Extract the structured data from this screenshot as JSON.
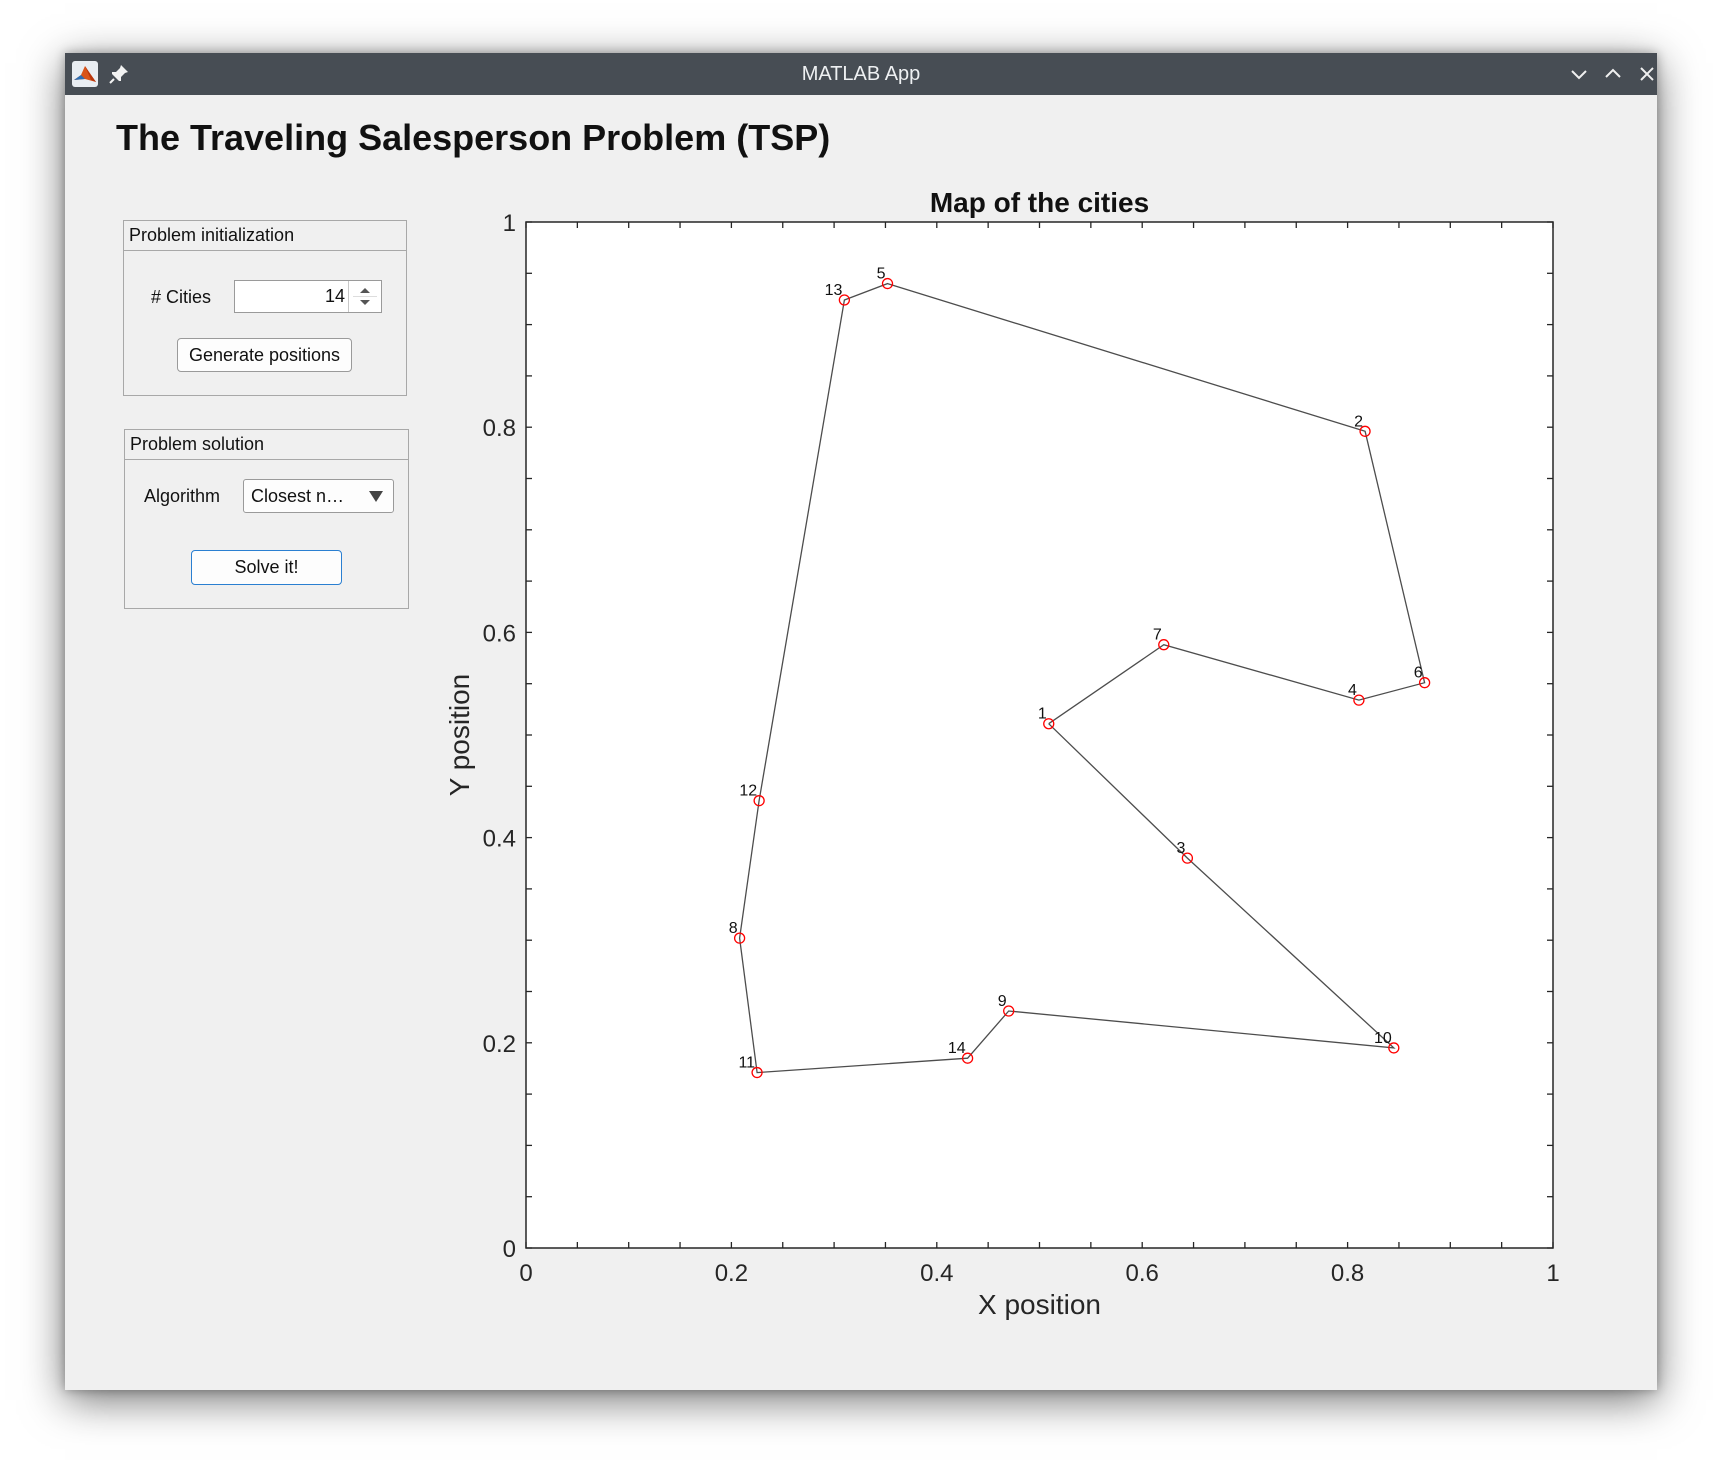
{
  "window": {
    "title": "MATLAB App"
  },
  "app": {
    "title": "The Traveling Salesperson Problem (TSP)"
  },
  "init_panel": {
    "title": "Problem initialization",
    "cities_label": "# Cities",
    "cities_value": "14",
    "generate_label": "Generate positions"
  },
  "solution_panel": {
    "title": "Problem solution",
    "algorithm_label": "Algorithm",
    "algorithm_value": "Closest n…",
    "solve_label": "Solve it!"
  },
  "colors": {
    "titlebar": "#474d54",
    "marker": "#ff0000",
    "route_line": "#4d4d4d",
    "focus": "#2a7fd1"
  },
  "chart_data": {
    "type": "line",
    "title": "Map of the cities",
    "xlabel": "X position",
    "ylabel": "Y position",
    "xlim": [
      0,
      1
    ],
    "ylim": [
      0,
      1
    ],
    "xticks": [
      "0",
      "0.2",
      "0.4",
      "0.6",
      "0.8",
      "1"
    ],
    "yticks": [
      "0",
      "0.2",
      "0.4",
      "0.6",
      "0.8",
      "1"
    ],
    "grid": false,
    "cities": [
      {
        "label": "1",
        "x": 0.509,
        "y": 0.511
      },
      {
        "label": "2",
        "x": 0.817,
        "y": 0.796
      },
      {
        "label": "3",
        "x": 0.644,
        "y": 0.38
      },
      {
        "label": "4",
        "x": 0.811,
        "y": 0.534
      },
      {
        "label": "5",
        "x": 0.352,
        "y": 0.94
      },
      {
        "label": "6",
        "x": 0.875,
        "y": 0.551
      },
      {
        "label": "7",
        "x": 0.621,
        "y": 0.588
      },
      {
        "label": "8",
        "x": 0.208,
        "y": 0.302
      },
      {
        "label": "9",
        "x": 0.47,
        "y": 0.231
      },
      {
        "label": "10",
        "x": 0.845,
        "y": 0.195
      },
      {
        "label": "11",
        "x": 0.225,
        "y": 0.171
      },
      {
        "label": "12",
        "x": 0.227,
        "y": 0.436
      },
      {
        "label": "13",
        "x": 0.31,
        "y": 0.924
      },
      {
        "label": "14",
        "x": 0.43,
        "y": 0.185
      }
    ],
    "route": [
      "1",
      "7",
      "4",
      "6",
      "2",
      "5",
      "13",
      "12",
      "8",
      "11",
      "14",
      "9",
      "10",
      "3",
      "1"
    ]
  }
}
